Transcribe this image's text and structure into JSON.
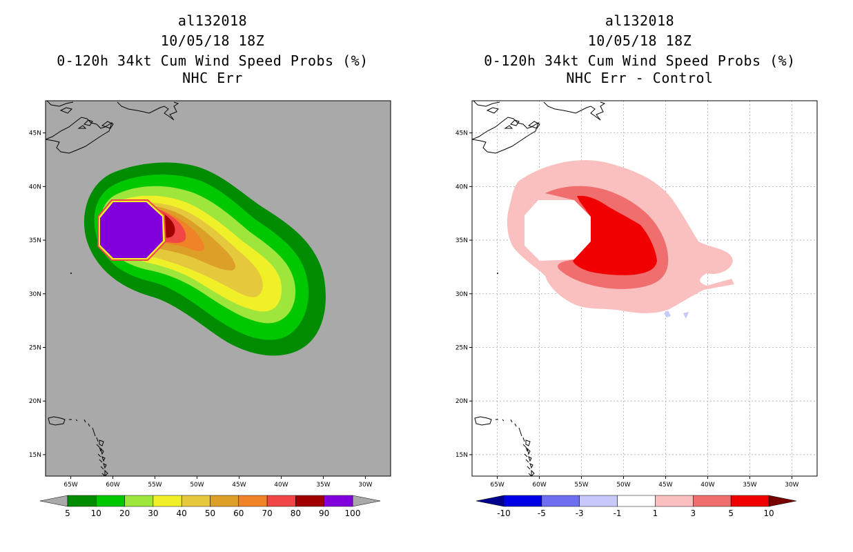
{
  "left_panel": {
    "title_lines": [
      "al132018",
      "10/05/18 18Z",
      "0-120h 34kt Cum Wind Speed Probs (%)",
      "NHC Err"
    ]
  },
  "right_panel": {
    "title_lines": [
      "al132018",
      "10/05/18 18Z",
      "0-120h 34kt Cum Wind Speed Probs (%)",
      "NHC Err - Control"
    ]
  },
  "colors": {
    "background_left": "#a9a9a9",
    "land_outline": "#000000",
    "grid": "#aaaaaa"
  },
  "chart_data": [
    {
      "type": "heatmap",
      "title": "0-120h 34kt Cum Wind Speed Probs (%)",
      "subtitle": "NHC Err",
      "storm_id": "al132018",
      "init_time": "10/05/18 18Z",
      "x_ticks": [
        "65W",
        "60W",
        "55W",
        "50W",
        "45W",
        "40W",
        "35W",
        "30W"
      ],
      "y_ticks": [
        "45N",
        "40N",
        "35N",
        "30N",
        "25N",
        "20N",
        "15N"
      ],
      "x_lon_values": [
        -65,
        -60,
        -55,
        -50,
        -45,
        -40,
        -35,
        -30
      ],
      "y_lat_values": [
        45,
        40,
        35,
        30,
        25,
        20,
        15
      ],
      "lon_range": [
        -68,
        -27
      ],
      "lat_range": [
        13,
        48
      ],
      "grid": false,
      "colorbar": {
        "labels": [
          "5",
          "10",
          "20",
          "30",
          "40",
          "50",
          "60",
          "70",
          "80",
          "90",
          "100"
        ],
        "levels": [
          5,
          10,
          20,
          30,
          40,
          50,
          60,
          70,
          80,
          90,
          100
        ],
        "colors": [
          "#008c00",
          "#00c800",
          "#9ee63c",
          "#f0f028",
          "#e6c83c",
          "#dca028",
          "#f08228",
          "#f04646",
          "#a00000",
          "#8200dc"
        ],
        "under_color": "#a9a9a9",
        "over_color": "#a9a9a9"
      }
    },
    {
      "type": "heatmap",
      "title": "0-120h 34kt Cum Wind Speed Probs (%)",
      "subtitle": "NHC Err - Control",
      "storm_id": "al132018",
      "init_time": "10/05/18 18Z",
      "x_ticks": [
        "65W",
        "60W",
        "55W",
        "50W",
        "45W",
        "40W",
        "35W",
        "30W"
      ],
      "y_ticks": [
        "45N",
        "40N",
        "35N",
        "30N",
        "25N",
        "20N",
        "15N"
      ],
      "x_lon_values": [
        -65,
        -60,
        -55,
        -50,
        -45,
        -40,
        -35,
        -30
      ],
      "y_lat_values": [
        45,
        40,
        35,
        30,
        25,
        20,
        15
      ],
      "lon_range": [
        -68,
        -27
      ],
      "lat_range": [
        13,
        48
      ],
      "grid": true,
      "colorbar": {
        "labels": [
          "-10",
          "-5",
          "-3",
          "-1",
          "1",
          "3",
          "5",
          "10"
        ],
        "levels": [
          -10,
          -5,
          -3,
          -1,
          1,
          3,
          5,
          10
        ],
        "colors": [
          "#0000e6",
          "#6e6ef0",
          "#c8c8fa",
          "#ffffff",
          "#fac0c0",
          "#f06e6e",
          "#f00000"
        ],
        "under_color": "#00008c",
        "over_color": "#780000"
      }
    }
  ]
}
